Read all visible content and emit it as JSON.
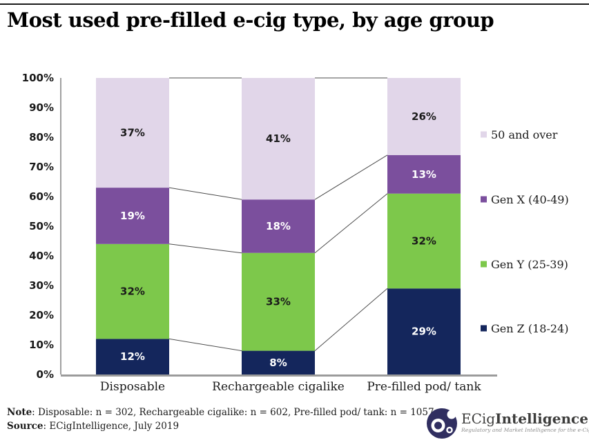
{
  "page": {
    "title": "Most used pre-filled e-cig type, by age group"
  },
  "chart_data": {
    "type": "bar",
    "stacked": true,
    "title": "Most used pre-filled e-cig type, by age group",
    "categories": [
      "Disposable",
      "Rechargeable cigalike",
      "Pre-filled pod/ tank"
    ],
    "sample_sizes": [
      302,
      602,
      1057
    ],
    "series": [
      {
        "name": "Gen Z (18-24)",
        "color": "#14265c",
        "label_color": "#ffffff",
        "values": [
          12,
          8,
          29
        ]
      },
      {
        "name": "Gen Y (25-39)",
        "color": "#7dc84b",
        "label_color": "#1a1a1a",
        "values": [
          32,
          33,
          32
        ]
      },
      {
        "name": "Gen X (40-49)",
        "color": "#7b4f9d",
        "label_color": "#ffffff",
        "values": [
          19,
          18,
          13
        ]
      },
      {
        "name": "50 and over",
        "color": "#e1d6e9",
        "label_color": "#1a1a1a",
        "values": [
          37,
          41,
          26
        ]
      }
    ],
    "y_ticks": [
      "0%",
      "10%",
      "20%",
      "30%",
      "40%",
      "50%",
      "60%",
      "70%",
      "80%",
      "90%",
      "100%"
    ],
    "ylim": [
      0,
      100
    ],
    "value_suffix": "%",
    "legend_position": "right",
    "grid": false,
    "connector_lines": true
  },
  "footer": {
    "note_label": "Note",
    "note_text": ": Disposable: n = 302, Rechargeable cigalike: n = 602, Pre-filled pod/ tank: n = 1057",
    "source_label": "Source",
    "source_text": ": ECigIntelligence, July 2019"
  },
  "logo": {
    "brand_light": "ECig",
    "brand_bold": "Intelligence",
    "tagline": "Regulatory and Market Intelligence for the e-Cigarette Sector",
    "mark_color": "#302e60"
  },
  "colors": {
    "axis": "#9b9b9b",
    "axis_vertical": "#808080",
    "connector": "#4a4a4a",
    "text": "#1a1a1a"
  }
}
